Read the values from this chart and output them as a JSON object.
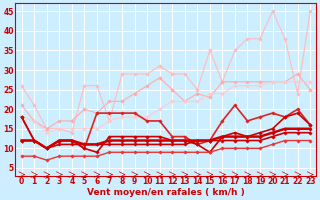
{
  "xlabel": "Vent moyen/en rafales ( km/h )",
  "background_color": "#cceeff",
  "grid_color": "#aadddd",
  "x_ticks": [
    0,
    1,
    2,
    3,
    4,
    5,
    6,
    7,
    8,
    9,
    10,
    11,
    12,
    13,
    14,
    15,
    16,
    17,
    18,
    19,
    20,
    21,
    22,
    23
  ],
  "y_ticks": [
    5,
    10,
    15,
    20,
    25,
    30,
    35,
    40,
    45
  ],
  "ylim": [
    3,
    47
  ],
  "xlim": [
    -0.5,
    23.5
  ],
  "lines": [
    {
      "x": [
        0,
        1,
        2,
        3,
        4,
        5,
        6,
        7,
        8,
        9,
        10,
        11,
        12,
        13,
        14,
        15,
        16,
        17,
        18,
        19,
        20,
        21,
        22,
        23
      ],
      "y": [
        26,
        21,
        15,
        15,
        14,
        26,
        26,
        17,
        29,
        29,
        29,
        31,
        29,
        29,
        25,
        35,
        27,
        35,
        38,
        38,
        45,
        38,
        24,
        45
      ],
      "color": "#ffbbbb",
      "lw": 0.8,
      "marker": "D",
      "ms": 1.8
    },
    {
      "x": [
        0,
        1,
        2,
        3,
        4,
        5,
        6,
        7,
        8,
        9,
        10,
        11,
        12,
        13,
        14,
        15,
        16,
        17,
        18,
        19,
        20,
        21,
        22,
        23
      ],
      "y": [
        21,
        17,
        15,
        17,
        17,
        20,
        19,
        22,
        22,
        24,
        26,
        28,
        25,
        22,
        24,
        23,
        27,
        27,
        27,
        27,
        27,
        27,
        29,
        25
      ],
      "color": "#ffaaaa",
      "lw": 0.8,
      "marker": "D",
      "ms": 1.8
    },
    {
      "x": [
        0,
        1,
        2,
        3,
        4,
        5,
        6,
        7,
        8,
        9,
        10,
        11,
        12,
        13,
        14,
        15,
        16,
        17,
        18,
        19,
        20,
        21,
        22,
        23
      ],
      "y": [
        18,
        17,
        14,
        15,
        15,
        15,
        15,
        17,
        18,
        18,
        18,
        20,
        22,
        22,
        22,
        24,
        24,
        26,
        26,
        26,
        27,
        27,
        27,
        27
      ],
      "color": "#ffcccc",
      "lw": 0.8,
      "marker": "D",
      "ms": 1.8
    },
    {
      "x": [
        0,
        1,
        2,
        3,
        4,
        5,
        6,
        7,
        8,
        9,
        10,
        11,
        12,
        13,
        14,
        15,
        16,
        17,
        18,
        19,
        20,
        21,
        22,
        23
      ],
      "y": [
        18,
        12,
        10,
        12,
        12,
        10,
        19,
        19,
        19,
        19,
        17,
        17,
        13,
        13,
        11,
        12,
        17,
        21,
        17,
        18,
        19,
        18,
        20,
        16
      ],
      "color": "#dd2222",
      "lw": 1.2,
      "marker": "D",
      "ms": 1.8
    },
    {
      "x": [
        0,
        1,
        2,
        3,
        4,
        5,
        6,
        7,
        8,
        9,
        10,
        11,
        12,
        13,
        14,
        15,
        16,
        17,
        18,
        19,
        20,
        21,
        22,
        23
      ],
      "y": [
        18,
        12,
        10,
        12,
        12,
        10,
        9,
        13,
        13,
        13,
        13,
        13,
        12,
        12,
        11,
        9,
        13,
        14,
        13,
        14,
        15,
        18,
        19,
        16
      ],
      "color": "#cc0000",
      "lw": 1.2,
      "marker": "D",
      "ms": 1.8
    },
    {
      "x": [
        0,
        1,
        2,
        3,
        4,
        5,
        6,
        7,
        8,
        9,
        10,
        11,
        12,
        13,
        14,
        15,
        16,
        17,
        18,
        19,
        20,
        21,
        22,
        23
      ],
      "y": [
        12,
        12,
        10,
        12,
        12,
        11,
        11,
        12,
        12,
        12,
        12,
        12,
        12,
        12,
        12,
        12,
        13,
        13,
        13,
        13,
        14,
        15,
        15,
        15
      ],
      "color": "#cc0000",
      "lw": 1.8,
      "marker": "D",
      "ms": 1.8
    },
    {
      "x": [
        0,
        1,
        2,
        3,
        4,
        5,
        6,
        7,
        8,
        9,
        10,
        11,
        12,
        13,
        14,
        15,
        16,
        17,
        18,
        19,
        20,
        21,
        22,
        23
      ],
      "y": [
        12,
        12,
        10,
        11,
        11,
        11,
        11,
        11,
        11,
        11,
        11,
        11,
        11,
        11,
        12,
        12,
        12,
        12,
        12,
        12,
        13,
        14,
        14,
        14
      ],
      "color": "#cc0000",
      "lw": 1.2,
      "marker": "D",
      "ms": 1.8
    },
    {
      "x": [
        0,
        1,
        2,
        3,
        4,
        5,
        6,
        7,
        8,
        9,
        10,
        11,
        12,
        13,
        14,
        15,
        16,
        17,
        18,
        19,
        20,
        21,
        22,
        23
      ],
      "y": [
        8,
        8,
        7,
        8,
        8,
        8,
        8,
        9,
        9,
        9,
        9,
        9,
        9,
        9,
        9,
        9,
        10,
        10,
        10,
        10,
        11,
        12,
        12,
        12
      ],
      "color": "#ee3333",
      "lw": 1.0,
      "marker": "D",
      "ms": 1.8
    }
  ],
  "xlabel_fontsize": 6.5,
  "tick_fontsize": 5.5
}
